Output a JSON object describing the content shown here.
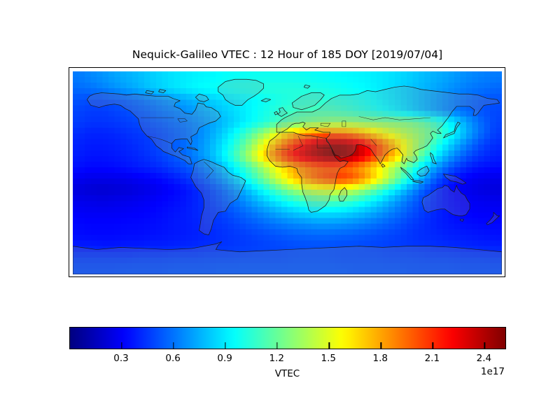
{
  "title": "Nequick-Galileo VTEC : 12 Hour of 185 DOY [2019/07/04]",
  "chart_data": {
    "type": "heatmap",
    "title": "Nequick-Galileo VTEC : 12 Hour of 185 DOY [2019/07/04]",
    "projection": "equirectangular",
    "colormap": "jet",
    "lon_range": [
      -180,
      180
    ],
    "lat_range": [
      -90,
      90
    ],
    "colorbar": {
      "label": "VTEC",
      "offset_label": "1e17",
      "ticks": [
        0.3,
        0.6,
        0.9,
        1.2,
        1.5,
        1.8,
        2.1,
        2.4
      ],
      "vmin": 0.0,
      "vmax": 2.52,
      "orientation": "horizontal"
    },
    "grid": {
      "cols": 36,
      "rows": 18,
      "lon_centers_start": -175,
      "lon_step": 10,
      "lat_centers_start": 85,
      "lat_step": -10,
      "values": [
        [
          0.62,
          0.65,
          0.68,
          0.72,
          0.75,
          0.78,
          0.82,
          0.85,
          0.88,
          0.9,
          0.92,
          0.93,
          0.95,
          0.96,
          0.97,
          0.98,
          0.98,
          0.98,
          0.98,
          0.97,
          0.96,
          0.95,
          0.94,
          0.93,
          0.92,
          0.9,
          0.88,
          0.85,
          0.82,
          0.78,
          0.75,
          0.72,
          0.68,
          0.65,
          0.63,
          0.62
        ],
        [
          0.58,
          0.6,
          0.63,
          0.67,
          0.71,
          0.75,
          0.8,
          0.84,
          0.88,
          0.91,
          0.94,
          0.96,
          0.98,
          1.0,
          1.01,
          1.02,
          1.03,
          1.03,
          1.03,
          1.02,
          1.01,
          1.0,
          0.98,
          0.96,
          0.94,
          0.91,
          0.88,
          0.84,
          0.8,
          0.76,
          0.72,
          0.68,
          0.64,
          0.61,
          0.59,
          0.57
        ],
        [
          0.52,
          0.5,
          0.5,
          0.52,
          0.55,
          0.58,
          0.62,
          0.66,
          0.7,
          0.74,
          0.78,
          0.82,
          0.86,
          0.89,
          0.92,
          0.95,
          0.98,
          1.01,
          1.03,
          1.05,
          1.05,
          1.04,
          1.02,
          1.0,
          0.97,
          0.93,
          0.89,
          0.85,
          0.8,
          0.75,
          0.7,
          0.65,
          0.6,
          0.56,
          0.53,
          0.52
        ],
        [
          0.48,
          0.46,
          0.46,
          0.48,
          0.5,
          0.53,
          0.56,
          0.6,
          0.63,
          0.67,
          0.71,
          0.76,
          0.81,
          0.86,
          0.91,
          0.96,
          1.01,
          1.06,
          1.09,
          1.11,
          1.12,
          1.11,
          1.09,
          1.06,
          1.02,
          0.98,
          0.93,
          0.88,
          0.82,
          0.76,
          0.7,
          0.64,
          0.59,
          0.55,
          0.51,
          0.49
        ],
        [
          0.46,
          0.44,
          0.44,
          0.45,
          0.47,
          0.49,
          0.52,
          0.55,
          0.58,
          0.62,
          0.66,
          0.71,
          0.77,
          0.84,
          0.91,
          0.98,
          1.05,
          1.12,
          1.18,
          1.23,
          1.26,
          1.29,
          1.3,
          1.3,
          1.28,
          1.27,
          1.26,
          1.25,
          1.22,
          1.16,
          1.06,
          0.94,
          0.8,
          0.66,
          0.55,
          0.48
        ],
        [
          0.42,
          0.4,
          0.4,
          0.41,
          0.43,
          0.45,
          0.47,
          0.5,
          0.54,
          0.58,
          0.64,
          0.72,
          0.82,
          0.94,
          1.08,
          1.24,
          1.41,
          1.58,
          1.72,
          1.83,
          1.9,
          1.93,
          1.92,
          1.86,
          1.76,
          1.64,
          1.52,
          1.42,
          1.34,
          1.26,
          1.15,
          1.0,
          0.84,
          0.68,
          0.55,
          0.46
        ],
        [
          0.4,
          0.38,
          0.38,
          0.39,
          0.41,
          0.43,
          0.46,
          0.5,
          0.54,
          0.59,
          0.66,
          0.75,
          0.87,
          1.02,
          1.2,
          1.42,
          1.65,
          1.88,
          2.08,
          2.25,
          2.38,
          2.46,
          2.47,
          2.4,
          2.25,
          2.05,
          1.85,
          1.63,
          1.42,
          1.22,
          1.03,
          0.86,
          0.7,
          0.57,
          0.47,
          0.42
        ],
        [
          0.38,
          0.36,
          0.36,
          0.37,
          0.39,
          0.41,
          0.44,
          0.48,
          0.53,
          0.58,
          0.66,
          0.76,
          0.9,
          1.08,
          1.3,
          1.55,
          1.8,
          2.02,
          2.2,
          2.33,
          2.43,
          2.5,
          2.5,
          2.42,
          2.25,
          2.05,
          1.85,
          1.6,
          1.35,
          1.1,
          0.9,
          0.72,
          0.58,
          0.48,
          0.42,
          0.39
        ],
        [
          0.35,
          0.33,
          0.33,
          0.34,
          0.36,
          0.38,
          0.4,
          0.43,
          0.47,
          0.52,
          0.58,
          0.67,
          0.78,
          0.92,
          1.08,
          1.26,
          1.45,
          1.63,
          1.78,
          1.89,
          1.96,
          1.99,
          1.97,
          1.9,
          1.78,
          1.62,
          1.44,
          1.25,
          1.05,
          0.86,
          0.69,
          0.55,
          0.45,
          0.38,
          0.35,
          0.34
        ],
        [
          0.28,
          0.26,
          0.26,
          0.26,
          0.27,
          0.29,
          0.31,
          0.34,
          0.38,
          0.43,
          0.5,
          0.58,
          0.68,
          0.81,
          0.96,
          1.13,
          1.32,
          1.52,
          1.7,
          1.85,
          1.97,
          2.05,
          2.07,
          2.0,
          1.85,
          1.64,
          1.4,
          1.15,
          0.91,
          0.7,
          0.53,
          0.41,
          0.33,
          0.29,
          0.27,
          0.26
        ],
        [
          0.23,
          0.21,
          0.2,
          0.21,
          0.22,
          0.24,
          0.26,
          0.29,
          0.32,
          0.36,
          0.41,
          0.48,
          0.56,
          0.66,
          0.77,
          0.9,
          1.04,
          1.18,
          1.31,
          1.41,
          1.48,
          1.51,
          1.49,
          1.42,
          1.3,
          1.15,
          0.99,
          0.83,
          0.67,
          0.53,
          0.42,
          0.34,
          0.29,
          0.26,
          0.24,
          0.23
        ],
        [
          0.27,
          0.26,
          0.25,
          0.26,
          0.27,
          0.28,
          0.3,
          0.32,
          0.34,
          0.37,
          0.41,
          0.46,
          0.52,
          0.59,
          0.67,
          0.76,
          0.85,
          0.94,
          1.02,
          1.08,
          1.12,
          1.13,
          1.11,
          1.06,
          0.98,
          0.88,
          0.77,
          0.66,
          0.56,
          0.47,
          0.4,
          0.35,
          0.31,
          0.29,
          0.28,
          0.27
        ],
        [
          0.3,
          0.29,
          0.29,
          0.29,
          0.3,
          0.31,
          0.32,
          0.34,
          0.36,
          0.38,
          0.41,
          0.44,
          0.48,
          0.53,
          0.58,
          0.64,
          0.7,
          0.76,
          0.81,
          0.85,
          0.88,
          0.88,
          0.87,
          0.83,
          0.78,
          0.72,
          0.65,
          0.58,
          0.51,
          0.45,
          0.4,
          0.36,
          0.33,
          0.31,
          0.3,
          0.3
        ],
        [
          0.33,
          0.32,
          0.32,
          0.32,
          0.33,
          0.33,
          0.34,
          0.35,
          0.37,
          0.38,
          0.4,
          0.43,
          0.45,
          0.48,
          0.52,
          0.55,
          0.59,
          0.62,
          0.65,
          0.67,
          0.69,
          0.69,
          0.68,
          0.66,
          0.63,
          0.59,
          0.55,
          0.51,
          0.46,
          0.43,
          0.39,
          0.37,
          0.35,
          0.34,
          0.33,
          0.33
        ],
        [
          0.34,
          0.33,
          0.33,
          0.33,
          0.34,
          0.34,
          0.35,
          0.36,
          0.37,
          0.38,
          0.39,
          0.41,
          0.43,
          0.45,
          0.47,
          0.49,
          0.51,
          0.53,
          0.55,
          0.56,
          0.57,
          0.57,
          0.56,
          0.55,
          0.53,
          0.51,
          0.49,
          0.47,
          0.44,
          0.42,
          0.41,
          0.39,
          0.38,
          0.37,
          0.36,
          0.35
        ],
        [
          0.38,
          0.38,
          0.37,
          0.37,
          0.38,
          0.38,
          0.39,
          0.39,
          0.4,
          0.41,
          0.42,
          0.43,
          0.44,
          0.45,
          0.46,
          0.47,
          0.48,
          0.49,
          0.5,
          0.51,
          0.51,
          0.51,
          0.5,
          0.5,
          0.49,
          0.48,
          0.47,
          0.46,
          0.45,
          0.44,
          0.43,
          0.42,
          0.41,
          0.4,
          0.39,
          0.39
        ],
        [
          0.46,
          0.46,
          0.46,
          0.46,
          0.46,
          0.47,
          0.47,
          0.47,
          0.48,
          0.48,
          0.48,
          0.49,
          0.49,
          0.49,
          0.5,
          0.5,
          0.5,
          0.5,
          0.51,
          0.51,
          0.51,
          0.51,
          0.5,
          0.5,
          0.5,
          0.5,
          0.49,
          0.49,
          0.49,
          0.48,
          0.48,
          0.48,
          0.47,
          0.47,
          0.47,
          0.46
        ],
        [
          0.5,
          0.5,
          0.5,
          0.5,
          0.51,
          0.51,
          0.51,
          0.51,
          0.52,
          0.52,
          0.52,
          0.52,
          0.53,
          0.53,
          0.53,
          0.53,
          0.53,
          0.53,
          0.53,
          0.53,
          0.53,
          0.53,
          0.53,
          0.52,
          0.52,
          0.52,
          0.52,
          0.52,
          0.51,
          0.51,
          0.51,
          0.51,
          0.5,
          0.5,
          0.5,
          0.5
        ]
      ]
    }
  }
}
